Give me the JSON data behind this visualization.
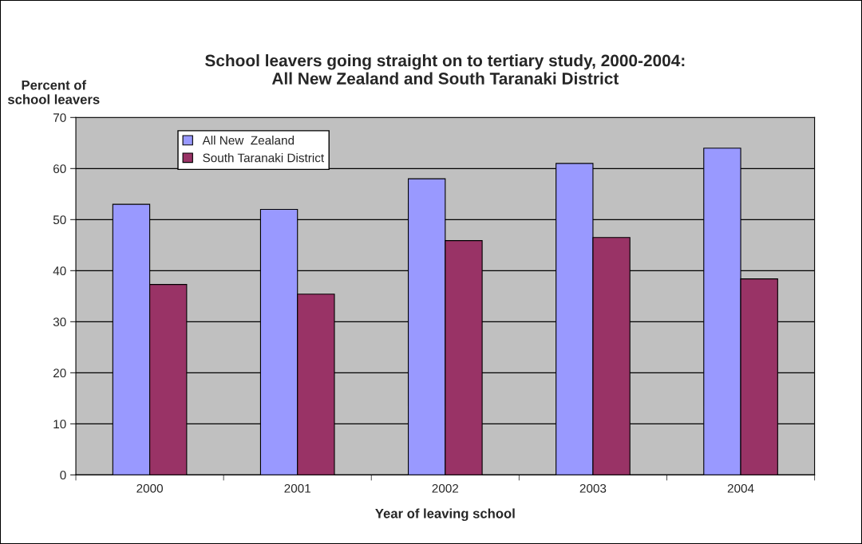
{
  "chart_data": {
    "type": "bar",
    "title": "School leavers going straight on to tertiary study, 2000-2004:\nAll New Zealand and South Taranaki District",
    "xlabel": "Year of leaving school",
    "ylabel": "Percent of\nschool leavers",
    "categories": [
      "2000",
      "2001",
      "2002",
      "2003",
      "2004"
    ],
    "series": [
      {
        "name": "All New  Zealand",
        "color": "#9999ff",
        "values": [
          53,
          52,
          58,
          61,
          64
        ]
      },
      {
        "name": "South Taranaki District",
        "color": "#993366",
        "values": [
          37.3,
          35.4,
          45.9,
          46.5,
          38.4
        ]
      }
    ],
    "ylim": [
      0,
      70
    ],
    "yticks": [
      0,
      10,
      20,
      30,
      40,
      50,
      60,
      70
    ],
    "grid": "y",
    "legend": "top left"
  }
}
